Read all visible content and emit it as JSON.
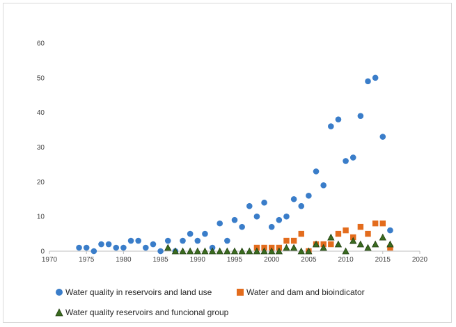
{
  "chart_data": {
    "type": "scatter",
    "title": "",
    "xlabel": "",
    "ylabel": "",
    "xlim": [
      1970,
      2020
    ],
    "ylim": [
      0,
      60
    ],
    "xticks": [
      1970,
      1975,
      1980,
      1985,
      1990,
      1995,
      2000,
      2005,
      2010,
      2015,
      2020
    ],
    "yticks": [
      0,
      10,
      20,
      30,
      40,
      50,
      60
    ],
    "grid": false,
    "legend_position": "bottom",
    "series": [
      {
        "name": "Water quality in reservoirs and land use",
        "marker": "circle",
        "color": "#3a7dc9",
        "x": [
          1974,
          1975,
          1976,
          1977,
          1978,
          1979,
          1980,
          1981,
          1982,
          1983,
          1984,
          1985,
          1986,
          1987,
          1988,
          1989,
          1990,
          1991,
          1992,
          1993,
          1994,
          1995,
          1996,
          1997,
          1998,
          1999,
          2000,
          2001,
          2002,
          2003,
          2004,
          2005,
          2006,
          2007,
          2008,
          2009,
          2010,
          2011,
          2012,
          2013,
          2014,
          2015,
          2016
        ],
        "y": [
          1,
          1,
          0,
          2,
          2,
          1,
          1,
          3,
          3,
          1,
          2,
          0,
          3,
          0,
          3,
          5,
          3,
          5,
          1,
          8,
          3,
          9,
          7,
          13,
          10,
          14,
          7,
          9,
          10,
          15,
          13,
          16,
          23,
          19,
          36,
          38,
          26,
          27,
          39,
          49,
          50,
          33,
          6
        ]
      },
      {
        "name": "Water and dam and bioindicator",
        "marker": "square",
        "color": "#e36c1d",
        "x": [
          1998,
          1999,
          2000,
          2001,
          2002,
          2003,
          2004,
          2005,
          2006,
          2007,
          2008,
          2009,
          2010,
          2011,
          2012,
          2013,
          2014,
          2015,
          2016
        ],
        "y": [
          1,
          1,
          1,
          1,
          3,
          3,
          5,
          0,
          2,
          2,
          2,
          5,
          6,
          4,
          7,
          5,
          8,
          8,
          1
        ]
      },
      {
        "name": "Water quality reservoirs and funcional group",
        "marker": "triangle",
        "color": "#3a6b1f",
        "x": [
          1986,
          1987,
          1988,
          1989,
          1990,
          1991,
          1992,
          1993,
          1994,
          1995,
          1996,
          1997,
          1998,
          1999,
          2000,
          2001,
          2002,
          2003,
          2004,
          2005,
          2006,
          2007,
          2008,
          2009,
          2010,
          2011,
          2012,
          2013,
          2014,
          2015,
          2016
        ],
        "y": [
          1,
          0,
          0,
          0,
          0,
          0,
          0,
          0,
          0,
          0,
          0,
          0,
          0,
          0,
          0,
          0,
          1,
          1,
          0,
          0,
          2,
          1,
          4,
          2,
          0,
          3,
          2,
          1,
          2,
          4,
          2
        ]
      }
    ]
  }
}
